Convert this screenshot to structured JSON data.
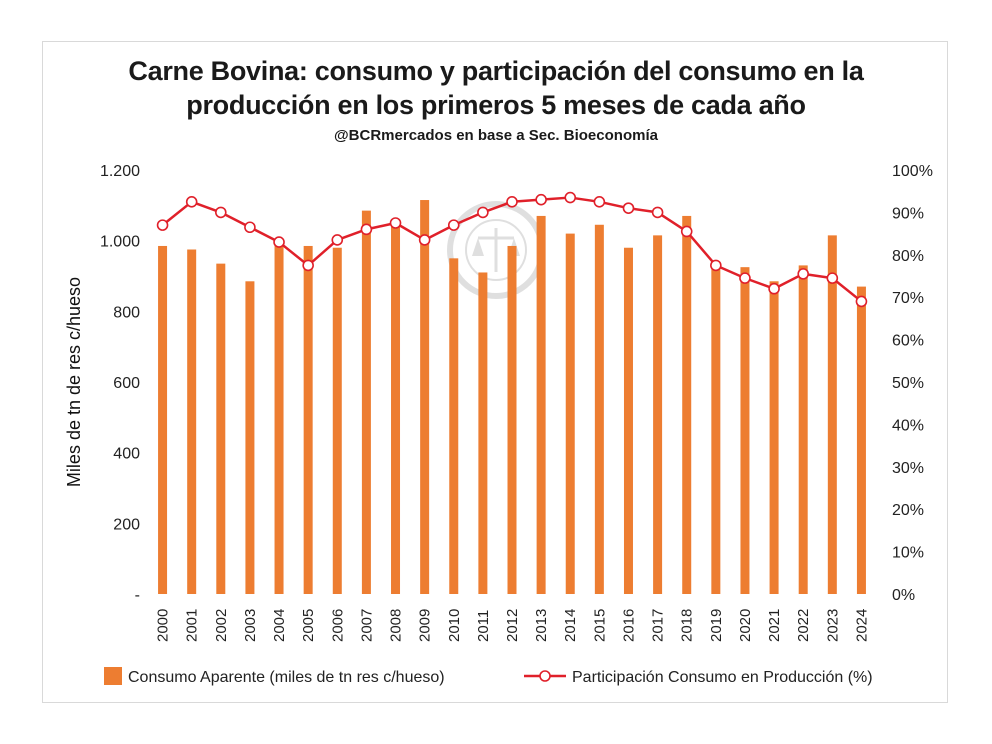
{
  "chart_data": {
    "type": "bar+line",
    "title_line1": "Carne Bovina: consumo y participación del consumo en la",
    "title_line2": "producción en los primeros 5 meses de cada año",
    "subtitle": "@BCRmercados en base a Sec. Bioeconomía",
    "ylabel": "Miles de tn de res c/hueso",
    "categories": [
      "2000",
      "2001",
      "2002",
      "2003",
      "2004",
      "2005",
      "2006",
      "2007",
      "2008",
      "2009",
      "2010",
      "2011",
      "2012",
      "2013",
      "2014",
      "2015",
      "2016",
      "2017",
      "2018",
      "2019",
      "2020",
      "2021",
      "2022",
      "2023",
      "2024"
    ],
    "left_axis": {
      "ylim": [
        0,
        1200
      ],
      "ticks": [
        0,
        200,
        400,
        600,
        800,
        1000,
        1200
      ],
      "tick_labels": [
        "-",
        "200",
        "400",
        "600",
        "800",
        "1.000",
        "1.200"
      ]
    },
    "right_axis": {
      "ylim": [
        0,
        100
      ],
      "ticks": [
        0,
        10,
        20,
        30,
        40,
        50,
        60,
        70,
        80,
        90,
        100
      ],
      "tick_labels": [
        "0%",
        "10%",
        "20%",
        "30%",
        "40%",
        "50%",
        "60%",
        "70%",
        "80%",
        "90%",
        "100%"
      ]
    },
    "series": [
      {
        "name": "Consumo Aparente (miles de tn res c/hueso)",
        "type": "bar",
        "axis": "left",
        "color": "#ED7D31",
        "values": [
          985,
          975,
          935,
          885,
          995,
          985,
          980,
          1085,
          1050,
          1115,
          950,
          910,
          985,
          1070,
          1020,
          1045,
          980,
          1015,
          1070,
          940,
          925,
          885,
          930,
          1015,
          870
        ]
      },
      {
        "name": "Participación Consumo en Producción (%)",
        "type": "line",
        "axis": "right",
        "color": "#E0202A",
        "values": [
          87,
          92.5,
          90,
          86.5,
          83,
          77.5,
          83.5,
          86,
          87.5,
          83.5,
          87,
          90,
          92.5,
          93,
          93.5,
          92.5,
          91,
          90,
          85.5,
          77.5,
          74.5,
          72,
          75.5,
          74.5,
          69
        ]
      }
    ],
    "grid": false,
    "legend_position": "bottom"
  }
}
